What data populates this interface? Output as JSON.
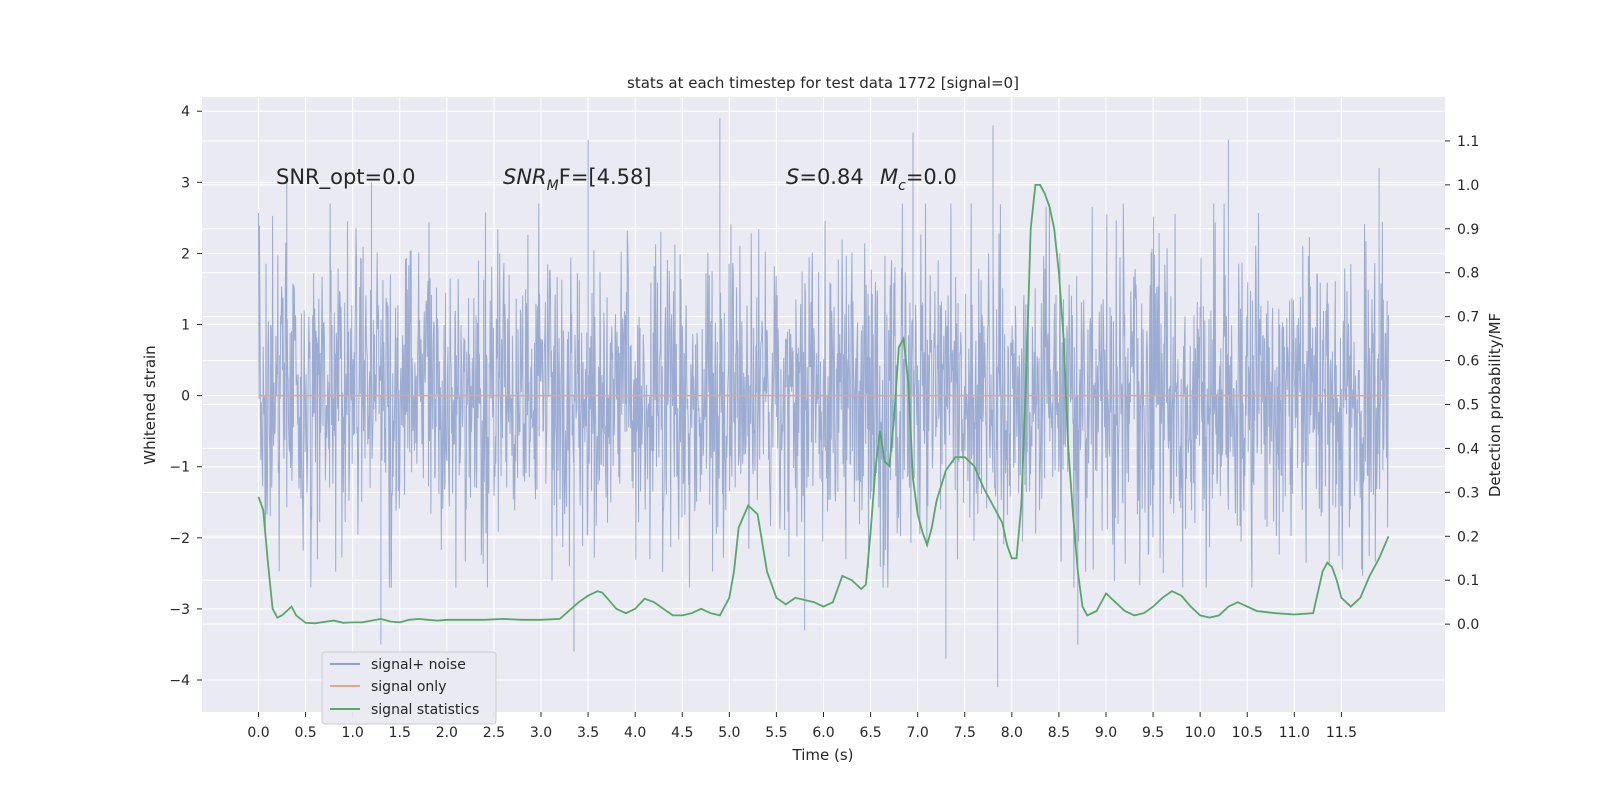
{
  "chart_data": {
    "type": "line",
    "title": "stats at each timestep for test data 1772 [signal=0]",
    "xlabel": "Time (s)",
    "ylabel_left": "Whitened strain",
    "ylabel_right": "Detection probability/MF",
    "xlim": [
      -0.6,
      12.6
    ],
    "ylim_left": [
      -4.45,
      4.2
    ],
    "ylim_right": [
      -0.2,
      1.2
    ],
    "x_ticks": [
      "0.0",
      "0.5",
      "1.0",
      "1.5",
      "2.0",
      "2.5",
      "3.0",
      "3.5",
      "4.0",
      "4.5",
      "5.0",
      "5.5",
      "6.0",
      "6.5",
      "7.0",
      "7.5",
      "8.0",
      "8.5",
      "9.0",
      "9.5",
      "10.0",
      "10.5",
      "11.0",
      "11.5"
    ],
    "y_left_ticks": [
      "4",
      "3",
      "2",
      "1",
      "0",
      "−1",
      "−2",
      "−3",
      "−4"
    ],
    "y_right_ticks": [
      "1.1",
      "1.0",
      "0.9",
      "0.8",
      "0.7",
      "0.6",
      "0.5",
      "0.4",
      "0.3",
      "0.2",
      "0.1",
      "0.0"
    ],
    "annotations": {
      "snr_opt": "SNR_opt=0.0",
      "snr_mf_label": "SNR",
      "snr_mf_sub": "M",
      "snr_mf_rest": "F=[4.58]",
      "s_label": "S",
      "s_value": "=0.84",
      "mc_label": "M",
      "mc_sub": "c",
      "mc_value": "=0.0"
    },
    "legend": {
      "position": "lower-left",
      "entries": [
        {
          "label": "signal+ noise",
          "color": "#8da0cb"
        },
        {
          "label": "signal only",
          "color": "#e3a68a"
        },
        {
          "label": "signal statistics",
          "color": "#55a868"
        }
      ]
    },
    "series": [
      {
        "name": "signal+ noise",
        "axis": "left",
        "style": "noise band",
        "color": "#8da0cb",
        "x_range": [
          0.0,
          12.0
        ],
        "typical_amplitude": 1.2,
        "peak_x": [
          0.3,
          1.2,
          3.5,
          4.9,
          6.95,
          7.8,
          10.3,
          11.9
        ],
        "peak_y": [
          3.1,
          3.0,
          3.6,
          3.9,
          3.7,
          3.8,
          3.6,
          3.2
        ],
        "trough_x": [
          1.3,
          3.35,
          5.8,
          7.3,
          7.85,
          8.7
        ],
        "trough_y": [
          -3.5,
          -3.6,
          -3.3,
          -3.7,
          -4.1,
          -3.5
        ]
      },
      {
        "name": "signal only",
        "axis": "left",
        "color": "#e3a68a",
        "x": [
          0.0,
          12.0
        ],
        "y": [
          0.0,
          0.0
        ]
      },
      {
        "name": "signal statistics",
        "axis": "right",
        "color": "#55a868",
        "x": [
          0.0,
          0.05,
          0.1,
          0.15,
          0.2,
          0.25,
          0.3,
          0.35,
          0.4,
          0.5,
          0.6,
          0.7,
          0.8,
          0.9,
          1.0,
          1.1,
          1.2,
          1.3,
          1.4,
          1.5,
          1.6,
          1.7,
          1.8,
          1.9,
          2.0,
          2.2,
          2.4,
          2.6,
          2.8,
          3.0,
          3.2,
          3.4,
          3.5,
          3.6,
          3.65,
          3.7,
          3.8,
          3.9,
          4.0,
          4.1,
          4.2,
          4.3,
          4.4,
          4.5,
          4.6,
          4.7,
          4.8,
          4.9,
          5.0,
          5.05,
          5.1,
          5.2,
          5.3,
          5.4,
          5.5,
          5.6,
          5.7,
          5.8,
          5.9,
          6.0,
          6.1,
          6.2,
          6.3,
          6.4,
          6.45,
          6.5,
          6.55,
          6.6,
          6.65,
          6.7,
          6.75,
          6.8,
          6.85,
          6.9,
          6.95,
          7.0,
          7.05,
          7.1,
          7.15,
          7.2,
          7.3,
          7.4,
          7.5,
          7.6,
          7.7,
          7.8,
          7.9,
          7.95,
          8.0,
          8.05,
          8.1,
          8.15,
          8.2,
          8.25,
          8.3,
          8.35,
          8.4,
          8.45,
          8.5,
          8.55,
          8.6,
          8.65,
          8.7,
          8.75,
          8.8,
          8.9,
          9.0,
          9.1,
          9.2,
          9.3,
          9.4,
          9.5,
          9.6,
          9.7,
          9.8,
          9.9,
          10.0,
          10.1,
          10.2,
          10.3,
          10.4,
          10.5,
          10.6,
          10.8,
          11.0,
          11.2,
          11.3,
          11.35,
          11.4,
          11.45,
          11.5,
          11.6,
          11.7,
          11.8,
          11.9,
          12.0
        ],
        "y": [
          0.29,
          0.26,
          0.14,
          0.035,
          0.015,
          0.02,
          0.03,
          0.04,
          0.02,
          0.003,
          0.002,
          0.005,
          0.008,
          0.003,
          0.004,
          0.004,
          0.008,
          0.012,
          0.006,
          0.004,
          0.01,
          0.012,
          0.01,
          0.008,
          0.01,
          0.01,
          0.01,
          0.012,
          0.01,
          0.01,
          0.012,
          0.05,
          0.065,
          0.075,
          0.072,
          0.06,
          0.035,
          0.025,
          0.035,
          0.058,
          0.05,
          0.035,
          0.02,
          0.02,
          0.025,
          0.035,
          0.025,
          0.02,
          0.06,
          0.12,
          0.22,
          0.27,
          0.25,
          0.12,
          0.06,
          0.045,
          0.06,
          0.055,
          0.05,
          0.04,
          0.05,
          0.11,
          0.1,
          0.08,
          0.09,
          0.21,
          0.35,
          0.44,
          0.37,
          0.36,
          0.47,
          0.63,
          0.65,
          0.55,
          0.33,
          0.25,
          0.21,
          0.18,
          0.22,
          0.28,
          0.35,
          0.38,
          0.38,
          0.36,
          0.31,
          0.27,
          0.23,
          0.18,
          0.15,
          0.15,
          0.27,
          0.55,
          0.9,
          1.0,
          1.0,
          0.98,
          0.95,
          0.9,
          0.8,
          0.65,
          0.4,
          0.25,
          0.12,
          0.04,
          0.02,
          0.03,
          0.07,
          0.05,
          0.03,
          0.02,
          0.025,
          0.04,
          0.06,
          0.075,
          0.065,
          0.04,
          0.02,
          0.015,
          0.02,
          0.04,
          0.05,
          0.04,
          0.03,
          0.025,
          0.022,
          0.025,
          0.12,
          0.14,
          0.13,
          0.1,
          0.06,
          0.04,
          0.06,
          0.11,
          0.15,
          0.2
        ]
      }
    ]
  }
}
